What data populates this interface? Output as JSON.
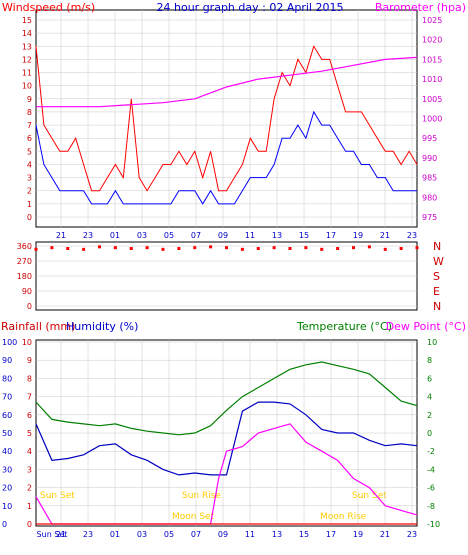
{
  "colors": {
    "wind": "#ff0000",
    "gust_bar": "#ff0000",
    "avg_wind": "#0000ff",
    "barometer": "#ff00ff",
    "direction": "#ff0000",
    "rain": "#ff0000",
    "humidity": "#0000c0",
    "temperature": "#008000",
    "dew_point": "#ff00ff",
    "sun_moon": "#ffcc00",
    "grid": "#c8c8c8",
    "frame": "#000000"
  },
  "top": {
    "left_title": "Windspeed (m/s)",
    "center_title": "24 hour graph day : 02 April 2015",
    "right_title": "Barometer (hpa)",
    "left_ticks": [
      "15",
      "14",
      "13",
      "12",
      "11",
      "10",
      "9",
      "8",
      "7",
      "6",
      "5",
      "4",
      "3",
      "2",
      "1",
      "0"
    ],
    "right_ticks": [
      "1025",
      "1020",
      "1015",
      "1010",
      "1005",
      "1000",
      "995",
      "990",
      "985",
      "980",
      "975"
    ],
    "x_ticks": [
      "21",
      "23",
      "01",
      "03",
      "05",
      "07",
      "09",
      "11",
      "13",
      "15",
      "17",
      "19",
      "21",
      "23"
    ]
  },
  "middle": {
    "left_ticks": [
      "360",
      "270",
      "180",
      "90",
      "0"
    ],
    "right_labels": [
      "N",
      "W",
      "S",
      "E",
      "N"
    ]
  },
  "bottom": {
    "rain_title": "Rainfall (mm)",
    "humidity_title": "Humidity (%)",
    "temp_title": "Temperature (°C)",
    "dew_title": "Dew Point (°C)",
    "left_ticks": [
      "100",
      "90",
      "80",
      "70",
      "60",
      "50",
      "40",
      "30",
      "20",
      "10",
      "0"
    ],
    "rain_ticks": [
      "10",
      "9",
      "8",
      "7",
      "6",
      "5",
      "4",
      "3",
      "2",
      "1",
      "0"
    ],
    "temp_ticks": [
      "10",
      "8",
      "6",
      "4",
      "2",
      "0",
      "-2",
      "-4",
      "-6",
      "-8",
      "-10"
    ],
    "x_ticks": [
      "Sun Set",
      "21",
      "23",
      "01",
      "03",
      "05",
      "07",
      "09",
      "11",
      "13",
      "15",
      "17",
      "19",
      "21",
      "23"
    ],
    "annotations": {
      "sun_set_1": "Sun Set",
      "sun_rise": "Sun Rise",
      "sun_set_2": "Sun Set",
      "moon_set": "Moon Set",
      "moon_rise": "Moon Rise"
    }
  },
  "chart_data": [
    {
      "type": "line",
      "title": "24 hour graph day : 02 April 2015",
      "x_unit": "hour",
      "x_ticks": [
        "21",
        "23",
        "01",
        "03",
        "05",
        "07",
        "09",
        "11",
        "13",
        "15",
        "17",
        "19",
        "21",
        "23"
      ],
      "y_label": "Windspeed (m/s)",
      "ylim": [
        0,
        15
      ],
      "y2_label": "Barometer (hpa)",
      "y2lim": [
        975,
        1025
      ],
      "series": [
        {
          "name": "Windspeed (m/s)",
          "axis": "left",
          "x": [
            0,
            0.5,
            1,
            1.5,
            2,
            2.5,
            3,
            3.5,
            4,
            4.5,
            5,
            5.5,
            6,
            6.5,
            7,
            7.5,
            8,
            8.5,
            9,
            9.5,
            10,
            10.5,
            11,
            11.5,
            12,
            12.5,
            13,
            13.5,
            14,
            14.5,
            15,
            15.5,
            16,
            16.5,
            17,
            17.5,
            18,
            18.5,
            19,
            19.5,
            20,
            20.5,
            21,
            21.5,
            22,
            22.5,
            23,
            23.5,
            24
          ],
          "values": [
            13,
            7,
            6,
            5,
            5,
            6,
            4,
            2,
            2,
            3,
            4,
            3,
            9,
            3,
            2,
            3,
            4,
            4,
            5,
            4,
            5,
            3,
            5,
            2,
            2,
            3,
            4,
            6,
            5,
            5,
            9,
            11,
            10,
            12,
            11,
            13,
            12,
            12,
            10,
            8,
            8,
            8,
            7,
            6,
            5,
            5,
            4,
            5,
            4
          ]
        },
        {
          "name": "Average windspeed",
          "axis": "left",
          "x": [
            0,
            0.5,
            1,
            1.5,
            2,
            2.5,
            3,
            3.5,
            4,
            4.5,
            5,
            5.5,
            6,
            6.5,
            7,
            7.5,
            8,
            8.5,
            9,
            9.5,
            10,
            10.5,
            11,
            11.5,
            12,
            12.5,
            13,
            13.5,
            14,
            14.5,
            15,
            15.5,
            16,
            16.5,
            17,
            17.5,
            18,
            18.5,
            19,
            19.5,
            20,
            20.5,
            21,
            21.5,
            22,
            22.5,
            23,
            23.5,
            24
          ],
          "values": [
            7,
            4,
            3,
            2,
            2,
            2,
            2,
            1,
            1,
            1,
            2,
            1,
            1,
            1,
            1,
            1,
            1,
            1,
            2,
            2,
            2,
            1,
            2,
            1,
            1,
            1,
            2,
            3,
            3,
            3,
            4,
            6,
            6,
            7,
            6,
            8,
            7,
            7,
            6,
            5,
            5,
            4,
            4,
            3,
            3,
            2,
            2,
            2,
            2
          ]
        },
        {
          "name": "Barometer (hpa)",
          "axis": "right",
          "x": [
            0,
            2,
            4,
            6,
            8,
            10,
            12,
            14,
            16,
            18,
            20,
            22,
            24
          ],
          "values": [
            1003,
            1003,
            1003,
            1003.5,
            1004,
            1005,
            1008,
            1010,
            1011,
            1012,
            1013.5,
            1015,
            1015.5
          ]
        }
      ]
    },
    {
      "type": "scatter",
      "title": "",
      "y_label": "",
      "ylim": [
        0,
        360
      ],
      "series": [
        {
          "name": "Wind direction",
          "x": [
            0,
            1,
            2,
            3,
            4,
            5,
            6,
            7,
            8,
            9,
            10,
            11,
            12,
            13,
            14,
            15,
            16,
            17,
            18,
            19,
            20,
            21,
            22,
            23,
            24
          ],
          "values": [
            340,
            350,
            345,
            340,
            355,
            350,
            345,
            350,
            340,
            345,
            350,
            355,
            350,
            340,
            345,
            350,
            345,
            350,
            340,
            345,
            350,
            355,
            340,
            345,
            350
          ]
        }
      ]
    },
    {
      "type": "line",
      "title": "",
      "x_ticks": [
        "21",
        "23",
        "01",
        "03",
        "05",
        "07",
        "09",
        "11",
        "13",
        "15",
        "17",
        "19",
        "21",
        "23"
      ],
      "y_label": "Humidity (%)",
      "ylim": [
        0,
        100
      ],
      "y2_label": "Temperature (°C)",
      "y2lim": [
        -10,
        10
      ],
      "series": [
        {
          "name": "Humidity (%)",
          "axis": "left",
          "x": [
            0,
            1,
            2,
            3,
            4,
            5,
            6,
            7,
            8,
            9,
            10,
            11,
            12,
            13,
            14,
            15,
            16,
            17,
            18,
            19,
            20,
            21,
            22,
            23,
            24
          ],
          "values": [
            55,
            35,
            36,
            38,
            43,
            44,
            38,
            35,
            30,
            27,
            28,
            27,
            27,
            62,
            67,
            67,
            66,
            60,
            52,
            50,
            50,
            46,
            43,
            44,
            43
          ]
        },
        {
          "name": "Temperature (°C)",
          "axis": "right",
          "x": [
            0,
            1,
            2,
            3,
            4,
            5,
            6,
            7,
            8,
            9,
            10,
            11,
            12,
            13,
            14,
            15,
            16,
            17,
            18,
            19,
            20,
            21,
            22,
            23,
            24
          ],
          "values": [
            3.4,
            1.5,
            1.2,
            1.0,
            0.8,
            1.0,
            0.5,
            0.2,
            0,
            -0.2,
            0,
            0.8,
            2.5,
            4.0,
            5.0,
            6.0,
            7.0,
            7.5,
            7.8,
            7.4,
            7.0,
            6.5,
            5.0,
            3.5,
            3.0
          ]
        },
        {
          "name": "Dew Point (°C)",
          "axis": "right",
          "x": [
            0,
            1,
            10.5,
            11,
            11.5,
            12,
            13,
            14,
            15,
            16,
            17,
            18,
            19,
            20,
            21,
            22,
            23,
            24
          ],
          "values": [
            -7,
            -10,
            -10,
            -10,
            -5,
            -2,
            -1.5,
            0,
            0.5,
            1,
            -1,
            -2,
            -3,
            -5,
            -6,
            -8,
            -8.5,
            -9
          ]
        },
        {
          "name": "Rainfall (mm)",
          "axis": "left",
          "x": [
            0,
            24
          ],
          "values": [
            0,
            0
          ]
        }
      ]
    }
  ]
}
